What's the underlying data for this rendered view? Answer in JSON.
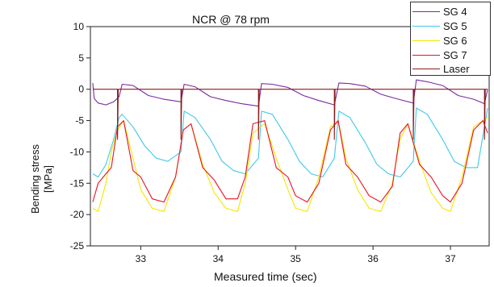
{
  "chart_data": {
    "type": "line",
    "title": "NCR @ 78 rpm",
    "xlabel": "Measured time (sec)",
    "ylabel": [
      "Bending stress",
      "[MPa]"
    ],
    "xlim": [
      32.35,
      37.5
    ],
    "ylim": [
      -25,
      10
    ],
    "xticks": [
      33,
      34,
      35,
      36,
      37
    ],
    "yticks": [
      -25,
      -20,
      -15,
      -10,
      -5,
      0,
      5,
      10
    ],
    "grid": false,
    "legend_position": "top-right",
    "series": [
      {
        "name": "SG 4",
        "color": "#7b2aa0",
        "x": [
          32.38,
          32.4,
          32.45,
          32.55,
          32.65,
          32.72,
          32.76,
          32.9,
          33.1,
          33.3,
          33.52,
          33.56,
          33.7,
          33.9,
          34.1,
          34.3,
          34.52,
          34.56,
          34.7,
          34.9,
          35.1,
          35.3,
          35.5,
          35.56,
          35.7,
          35.9,
          36.1,
          36.3,
          36.52,
          36.56,
          36.7,
          36.9,
          37.1,
          37.3,
          37.44,
          37.48
        ],
        "y": [
          1.0,
          -1.5,
          -2.2,
          -2.5,
          -2.0,
          -1.2,
          0.8,
          0.6,
          -1.0,
          -1.6,
          -2.0,
          0.8,
          0.4,
          -1.2,
          -1.8,
          -2.3,
          -2.7,
          0.9,
          0.8,
          0.3,
          -1.0,
          -1.8,
          -2.5,
          1.0,
          0.9,
          0.5,
          -0.8,
          -1.5,
          -2.2,
          1.5,
          1.2,
          0.6,
          -1.0,
          -1.6,
          -2.3,
          0.0
        ]
      },
      {
        "name": "SG 5",
        "color": "#3fc8e8",
        "x": [
          32.38,
          32.45,
          32.55,
          32.65,
          32.72,
          32.76,
          32.9,
          33.05,
          33.2,
          33.35,
          33.52,
          33.56,
          33.7,
          33.9,
          34.05,
          34.2,
          34.35,
          34.52,
          34.56,
          34.7,
          34.9,
          35.05,
          35.2,
          35.35,
          35.5,
          35.56,
          35.7,
          35.9,
          36.05,
          36.2,
          36.35,
          36.52,
          36.56,
          36.7,
          36.9,
          37.05,
          37.2,
          37.35,
          37.48
        ],
        "y": [
          -13.5,
          -14.0,
          -12.0,
          -8.0,
          -4.5,
          -4.0,
          -6.0,
          -9.0,
          -11.0,
          -11.5,
          -10.0,
          -3.5,
          -4.5,
          -8.0,
          -11.5,
          -13.0,
          -13.5,
          -11.0,
          -3.5,
          -4.0,
          -8.0,
          -11.5,
          -13.5,
          -14.0,
          -11.0,
          -3.5,
          -4.5,
          -8.5,
          -12.0,
          -13.5,
          -14.0,
          -11.5,
          -3.0,
          -4.0,
          -8.0,
          -11.5,
          -12.5,
          -12.5,
          -3.0
        ]
      },
      {
        "name": "SG 6",
        "color": "#f5e600",
        "x": [
          32.38,
          32.45,
          32.55,
          32.62,
          32.7,
          32.78,
          32.9,
          33.0,
          33.15,
          33.3,
          33.45,
          33.55,
          33.65,
          33.8,
          33.95,
          34.1,
          34.25,
          34.35,
          34.45,
          34.6,
          34.75,
          34.9,
          35.0,
          35.15,
          35.3,
          35.45,
          35.55,
          35.65,
          35.8,
          35.95,
          36.1,
          36.25,
          36.35,
          36.45,
          36.6,
          36.75,
          36.9,
          37.0,
          37.15,
          37.3,
          37.42,
          37.48
        ],
        "y": [
          -19.0,
          -19.5,
          -15.0,
          -10.0,
          -6.5,
          -5.0,
          -11.0,
          -16.0,
          -19.0,
          -19.5,
          -14.0,
          -6.5,
          -5.5,
          -12.0,
          -16.5,
          -19.0,
          -19.5,
          -15.0,
          -7.0,
          -5.5,
          -11.0,
          -16.0,
          -19.0,
          -19.5,
          -14.0,
          -6.0,
          -5.0,
          -11.0,
          -16.0,
          -19.0,
          -19.5,
          -15.0,
          -8.0,
          -5.5,
          -11.5,
          -16.5,
          -19.0,
          -19.5,
          -14.0,
          -6.0,
          -5.0,
          -4.5
        ]
      },
      {
        "name": "SG 7",
        "color": "#e8102a",
        "x": [
          32.38,
          32.45,
          32.55,
          32.62,
          32.7,
          32.78,
          32.9,
          33.0,
          33.15,
          33.3,
          33.45,
          33.55,
          33.65,
          33.8,
          33.95,
          34.1,
          34.25,
          34.35,
          34.45,
          34.6,
          34.75,
          34.9,
          35.0,
          35.15,
          35.3,
          35.45,
          35.55,
          35.65,
          35.8,
          35.95,
          36.1,
          36.25,
          36.35,
          36.45,
          36.6,
          36.75,
          36.9,
          37.0,
          37.15,
          37.3,
          37.42,
          37.48
        ],
        "y": [
          -18.0,
          -15.0,
          -13.5,
          -12.5,
          -6.0,
          -5.0,
          -13.0,
          -14.0,
          -17.5,
          -18.0,
          -14.0,
          -6.5,
          -5.5,
          -12.5,
          -14.5,
          -17.5,
          -17.5,
          -14.0,
          -5.5,
          -5.0,
          -12.5,
          -14.0,
          -17.0,
          -18.0,
          -15.0,
          -6.5,
          -5.0,
          -12.0,
          -14.0,
          -17.0,
          -18.0,
          -15.5,
          -7.0,
          -5.5,
          -12.0,
          -14.0,
          -17.0,
          -18.0,
          -15.0,
          -6.5,
          -5.0,
          -7.0
        ]
      },
      {
        "name": "Laser",
        "color": "#8b1a1a",
        "x": [
          32.38,
          32.7,
          32.7,
          32.71,
          33.52,
          33.52,
          33.53,
          34.52,
          34.52,
          34.53,
          35.5,
          35.5,
          35.51,
          36.52,
          36.52,
          36.53,
          37.44,
          37.44,
          37.45,
          37.48
        ],
        "y": [
          0.0,
          0.0,
          -8.0,
          0.0,
          0.0,
          -8.0,
          0.0,
          0.0,
          -8.0,
          0.0,
          0.0,
          -8.0,
          0.0,
          0.0,
          -8.0,
          0.0,
          0.0,
          -8.0,
          0.0,
          0.0
        ]
      }
    ]
  }
}
